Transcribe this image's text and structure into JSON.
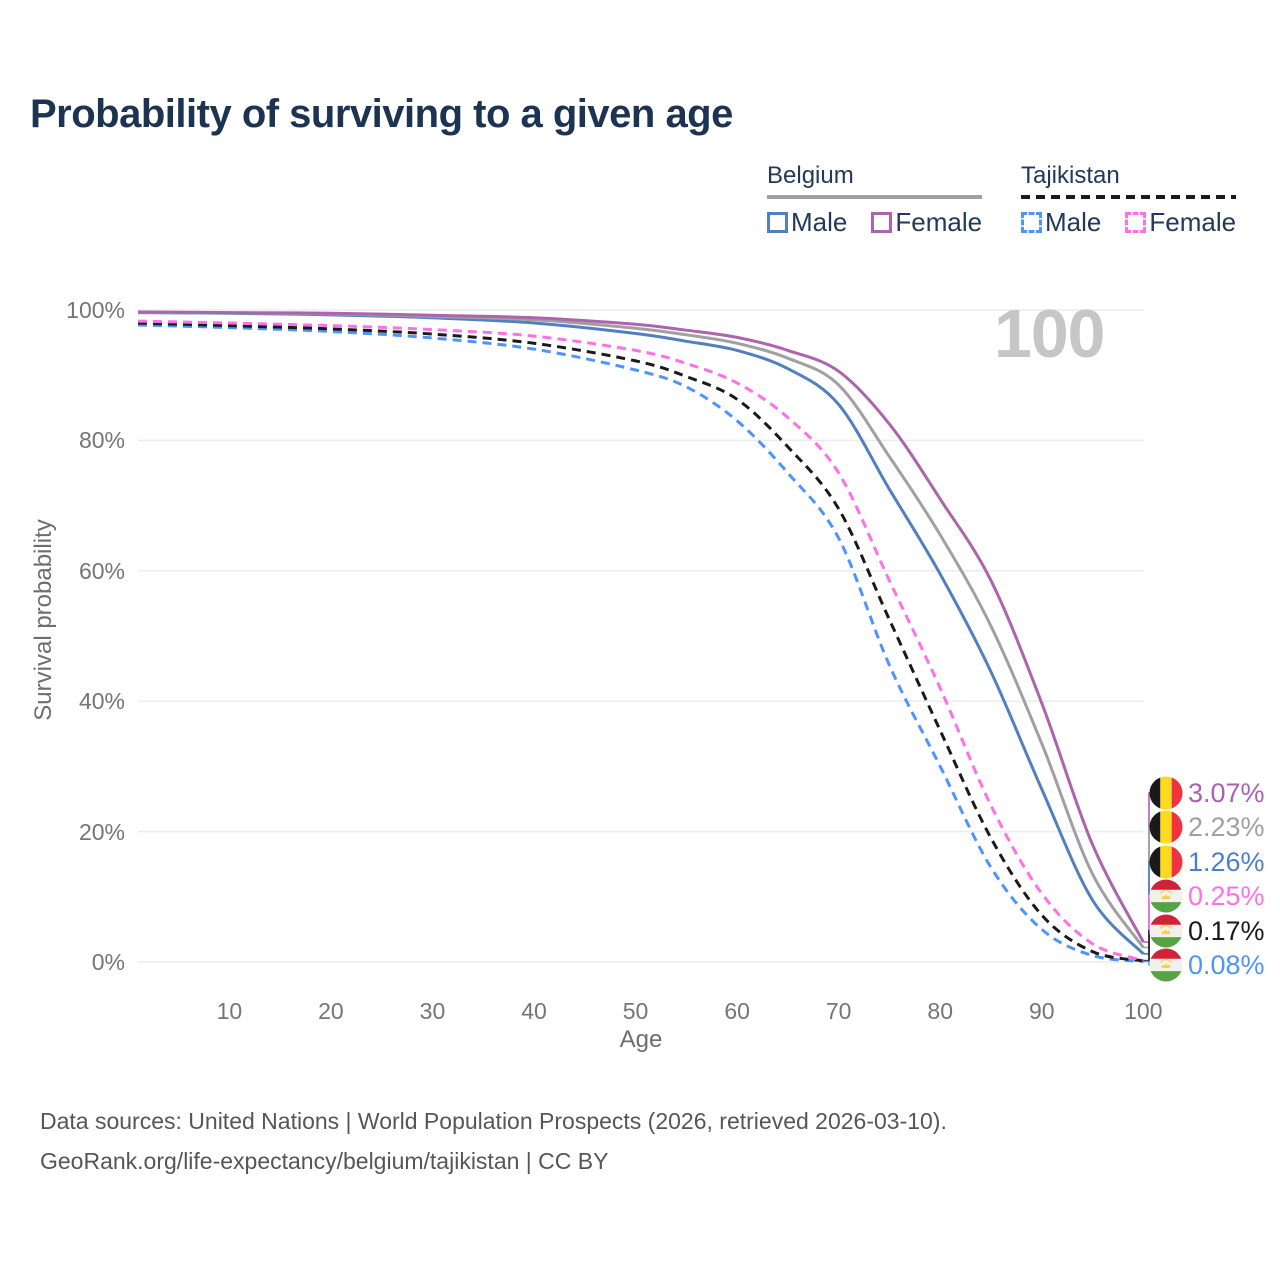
{
  "title": "Probability of surviving to a given age",
  "watermark": "100",
  "legend": {
    "groups": [
      {
        "label": "Belgium",
        "line_style": "solid",
        "underline_color": "#a0a0a0",
        "items": [
          {
            "label": "Male",
            "color": "#5180c0",
            "dashed": false
          },
          {
            "label": "Female",
            "color": "#ad63ad",
            "dashed": false
          }
        ]
      },
      {
        "label": "Tajikistan",
        "line_style": "dashed",
        "underline_color": "#1a1a1a",
        "items": [
          {
            "label": "Male",
            "color": "#4d94ff",
            "dashed": true
          },
          {
            "label": "Female",
            "color": "#ff70e8",
            "dashed": true
          }
        ]
      }
    ]
  },
  "axes": {
    "y_label": "Survival probability",
    "x_label": "Age",
    "y_ticks": [
      "100%",
      "80%",
      "60%",
      "40%",
      "20%",
      "0%"
    ],
    "x_ticks": [
      "10",
      "20",
      "30",
      "40",
      "50",
      "60",
      "70",
      "80",
      "90",
      "100"
    ]
  },
  "end_labels": [
    {
      "flag": "belgium",
      "value": "3.07%",
      "color": "#ab5fb5"
    },
    {
      "flag": "belgium",
      "value": "2.23%",
      "color": "#a0a0a0"
    },
    {
      "flag": "belgium",
      "value": "1.26%",
      "color": "#4d7fc9"
    },
    {
      "flag": "tajikistan",
      "value": "0.25%",
      "color": "#ff70e8"
    },
    {
      "flag": "tajikistan",
      "value": "0.17%",
      "color": "#1a1a1a"
    },
    {
      "flag": "tajikistan",
      "value": "0.08%",
      "color": "#4d94ff"
    }
  ],
  "footer": {
    "line1": "Data sources: United Nations | World Population Prospects (2026, retrieved 2026-03-10).",
    "line2": "GeoRank.org/life-expectancy/belgium/tajikistan | CC BY"
  },
  "chart_data": {
    "type": "line",
    "title": "Probability of surviving to a given age",
    "xlabel": "Age",
    "ylabel": "Survival probability",
    "xlim": [
      1,
      100
    ],
    "ylim": [
      0,
      100
    ],
    "grid": "horizontal",
    "legend_position": "top-right",
    "x": [
      1,
      10,
      20,
      30,
      40,
      50,
      55,
      60,
      65,
      70,
      75,
      80,
      85,
      90,
      95,
      100
    ],
    "series": [
      {
        "name": "Belgium Female",
        "color": "#ad63ad",
        "dashed": false,
        "end_label": "3.07%",
        "values": [
          99.7,
          99.6,
          99.5,
          99.2,
          98.8,
          97.8,
          96.9,
          95.8,
          93.8,
          90.6,
          82.5,
          71.0,
          58.5,
          39.7,
          18.0,
          3.07
        ]
      },
      {
        "name": "Belgium Both sexes",
        "color": "#a0a0a0",
        "dashed": false,
        "end_label": "2.23%",
        "values": [
          99.65,
          99.55,
          99.4,
          99.0,
          98.5,
          97.2,
          96.2,
          94.9,
          92.6,
          88.5,
          77.5,
          65.5,
          51.5,
          33.5,
          13.5,
          2.23
        ]
      },
      {
        "name": "Belgium Male",
        "color": "#5180c0",
        "dashed": false,
        "end_label": "1.26%",
        "values": [
          99.6,
          99.5,
          99.25,
          98.8,
          98.0,
          96.4,
          95.2,
          93.8,
          91.0,
          85.5,
          72.5,
          59.5,
          44.5,
          26.5,
          9.5,
          1.26
        ]
      },
      {
        "name": "Tajikistan Female",
        "color": "#ff70e8",
        "dashed": true,
        "end_label": "0.25%",
        "values": [
          98.3,
          98.0,
          97.6,
          97.0,
          96.0,
          93.8,
          91.8,
          88.8,
          83.5,
          75.0,
          58.5,
          42.0,
          24.0,
          10.5,
          2.8,
          0.25
        ]
      },
      {
        "name": "Tajikistan Both sexes",
        "color": "#1a1a1a",
        "dashed": true,
        "end_label": "0.17%",
        "values": [
          98.0,
          97.6,
          97.1,
          96.3,
          94.9,
          92.2,
          89.8,
          86.3,
          79.0,
          69.5,
          52.5,
          35.5,
          19.0,
          7.2,
          1.6,
          0.17
        ]
      },
      {
        "name": "Tajikistan Male",
        "color": "#4d94ff",
        "dashed": true,
        "end_label": "0.08%",
        "values": [
          97.7,
          97.3,
          96.7,
          95.7,
          94.0,
          90.8,
          88.2,
          83.0,
          75.0,
          65.0,
          45.5,
          30.0,
          14.5,
          5.0,
          1.0,
          0.08
        ]
      }
    ]
  }
}
